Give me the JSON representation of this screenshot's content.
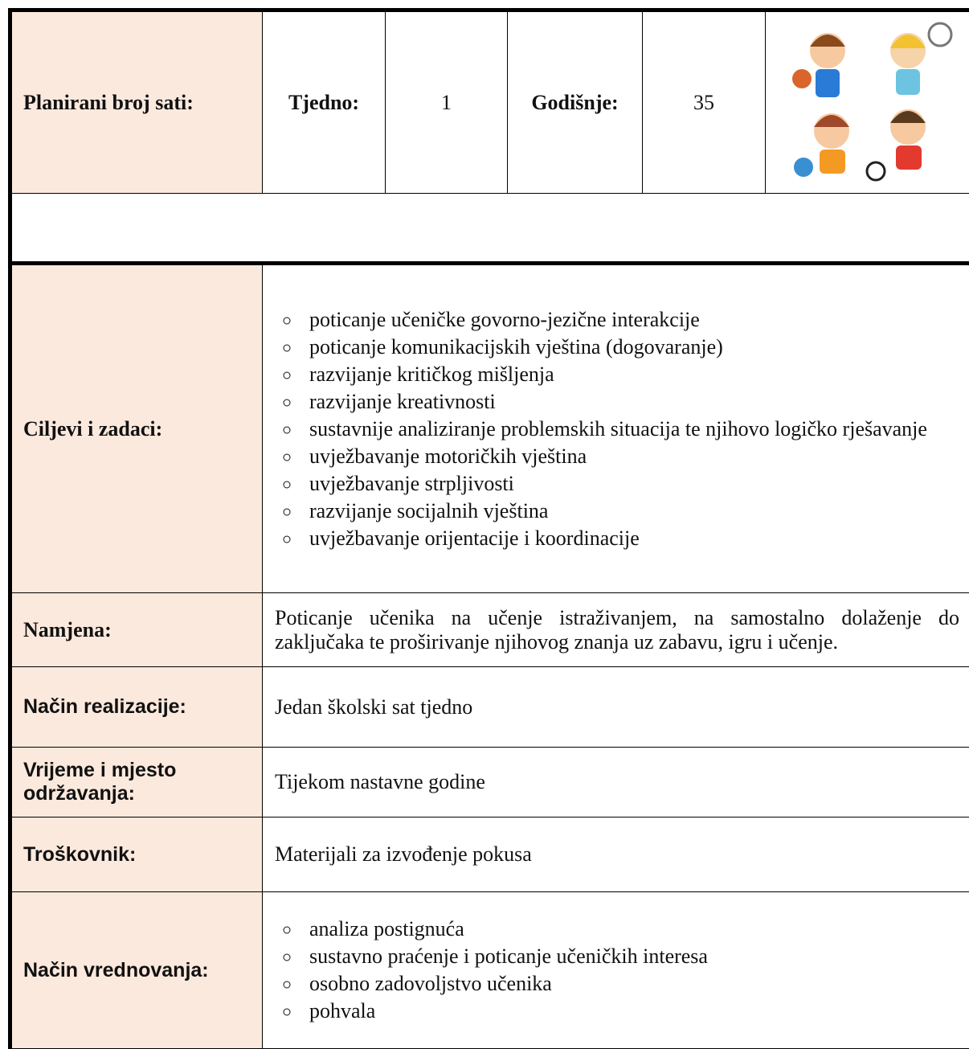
{
  "header": {
    "label": "Planirani broj sati:",
    "weekly_label": "Tjedno:",
    "weekly": 1,
    "yearly_label": "Godišnje:",
    "yearly": 35
  },
  "rows": [
    {
      "label": "Ciljevi i zadaci:",
      "items": [
        "poticanje učeničke govorno-jezične interakcije",
        "poticanje komunikacijskih vještina (dogovaranje)",
        "razvijanje kritičkog mišljenja",
        "razvijanje kreativnosti",
        "sustavnije analiziranje problemskih situacija te njihovo logičko rješavanje",
        "uvježbavanje motoričkih vještina",
        "uvježbavanje strpljivosti",
        "razvijanje socijalnih vještina",
        "uvježbavanje orijentacije i koordinacije"
      ]
    },
    {
      "label": "Namjena:",
      "text": "Poticanje učenika na učenje istraživanjem, na samostalno dolaženje do zaključaka te proširivanje njihovog znanja uz zabavu, igru i učenje."
    },
    {
      "label": "Način realizacije:",
      "text": "Jedan školski sat tjedno"
    },
    {
      "label": "Vrijeme i mjesto održavanja:",
      "text": "Tijekom nastavne godine"
    },
    {
      "label": "Troškovnik:",
      "text": "Materijali za izvođenje pokusa"
    },
    {
      "label": "Način vrednovanja:",
      "items": [
        "analiza postignuća",
        "sustavno praćenje i poticanje učeničkih interesa",
        "osobno zadovoljstvo učenika",
        "pohvala"
      ]
    }
  ]
}
